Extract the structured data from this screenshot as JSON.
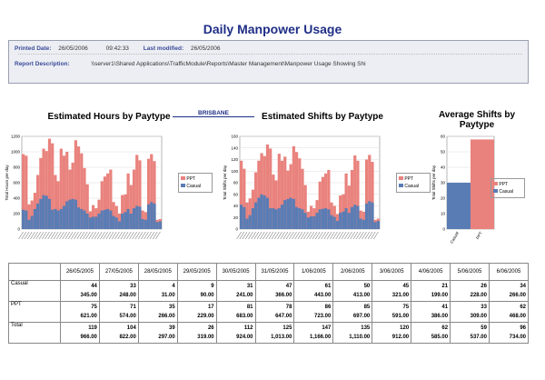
{
  "page": {
    "title": "Daily Manpower Usage",
    "printed_date_label": "Printed Date:",
    "printed_date": "26/05/2006",
    "printed_time": "09:42:33",
    "last_modified_label": "Last modified:",
    "last_modified": "26/05/2006",
    "report_description_label": "Report Description:",
    "report_description": "\\\\server1\\Shared Applications\\TrafficModule\\Reports\\Master Management\\Manpower Usage Showing Shi",
    "region": "BRISBANE"
  },
  "chart_data": [
    {
      "type": "bar",
      "title": "Estimated Hours by Paytype",
      "ylabel": "Total Hours per day",
      "ylim": [
        0,
        1200
      ],
      "yticks": [
        0,
        200,
        400,
        600,
        800,
        1000,
        1200
      ],
      "series": [
        {
          "name": "PPT",
          "color": "#e9827d",
          "values": [
            970,
            950,
            320,
            370,
            470,
            700,
            920,
            1040,
            1010,
            1170,
            1110,
            700,
            620,
            1040,
            950,
            1000,
            770,
            860,
            1150,
            1070,
            980,
            790,
            580,
            230,
            310,
            270,
            380,
            620,
            680,
            720,
            770,
            350,
            300,
            200,
            440,
            450,
            720,
            570,
            770,
            960,
            890,
            240,
            220,
            910,
            970,
            880,
            120,
            130
          ]
        },
        {
          "name": "Casual",
          "color": "#5a7cb4",
          "values": [
            250,
            240,
            120,
            170,
            260,
            330,
            390,
            440,
            430,
            390,
            250,
            260,
            240,
            260,
            300,
            360,
            380,
            390,
            380,
            280,
            260,
            240,
            200,
            150,
            160,
            160,
            200,
            240,
            250,
            260,
            240,
            170,
            150,
            100,
            200,
            220,
            260,
            200,
            270,
            300,
            290,
            130,
            120,
            320,
            350,
            330,
            90,
            100
          ]
        }
      ],
      "legend": "right"
    },
    {
      "type": "bar",
      "title": "Estimated Shifts by Paytype",
      "ylabel": "Total Shifts per day",
      "ylim": [
        0,
        160
      ],
      "yticks": [
        0,
        20,
        40,
        60,
        80,
        100,
        120,
        140,
        160
      ],
      "series": [
        {
          "name": "PPT",
          "color": "#e9827d",
          "values": [
            118,
            104,
            46,
            53,
            68,
            98,
            118,
            131,
            126,
            146,
            139,
            94,
            84,
            130,
            118,
            125,
            101,
            112,
            143,
            133,
            122,
            104,
            76,
            30,
            40,
            36,
            50,
            82,
            90,
            96,
            102,
            46,
            40,
            26,
            58,
            60,
            96,
            75,
            102,
            127,
            118,
            32,
            30,
            120,
            128,
            116,
            16,
            18
          ]
        },
        {
          "name": "Casual",
          "color": "#5a7cb4",
          "values": [
            42,
            38,
            18,
            24,
            36,
            46,
            54,
            60,
            58,
            54,
            36,
            36,
            34,
            36,
            42,
            50,
            52,
            54,
            52,
            38,
            36,
            34,
            28,
            20,
            22,
            22,
            28,
            34,
            35,
            36,
            34,
            24,
            21,
            14,
            28,
            30,
            36,
            28,
            38,
            42,
            40,
            18,
            16,
            44,
            48,
            46,
            12,
            14
          ]
        }
      ],
      "legend": "right"
    },
    {
      "type": "bar",
      "title": "Average Shifts by Paytype",
      "ylabel": "Total Shifts per day",
      "ylim": [
        0,
        60
      ],
      "yticks": [
        0,
        10,
        20,
        30,
        40,
        50,
        60
      ],
      "categories": [
        "Casual",
        "PPT"
      ],
      "values": [
        30,
        58
      ],
      "colors": [
        "#5a7cb4",
        "#e9827d"
      ],
      "legend_entries": [
        "PPT",
        "Casual"
      ],
      "legend": "right"
    }
  ],
  "table": {
    "dates": [
      "26/05/2005",
      "27/05/2005",
      "28/05/2005",
      "29/05/2005",
      "30/05/2005",
      "31/05/2005",
      "1/06/2005",
      "2/06/2005",
      "3/06/2005",
      "4/06/2005",
      "5/06/2005",
      "6/06/2005"
    ],
    "rows": [
      {
        "label": "Casual",
        "v1": [
          "44",
          "33",
          "4",
          "9",
          "31",
          "47",
          "61",
          "50",
          "45",
          "21",
          "26",
          "34"
        ],
        "v2": [
          "345.00",
          "248.00",
          "31.00",
          "90.00",
          "241.00",
          "366.00",
          "443.00",
          "413.00",
          "321.00",
          "199.00",
          "228.00",
          "266.00"
        ]
      },
      {
        "label": "PPT",
        "v1": [
          "75",
          "71",
          "35",
          "17",
          "81",
          "78",
          "86",
          "85",
          "75",
          "41",
          "33",
          "62"
        ],
        "v2": [
          "621.00",
          "574.00",
          "266.00",
          "229.00",
          "683.00",
          "647.00",
          "723.00",
          "697.00",
          "591.00",
          "386.00",
          "309.00",
          "468.00"
        ]
      },
      {
        "label": "Total",
        "v1": [
          "119",
          "104",
          "39",
          "26",
          "112",
          "125",
          "147",
          "135",
          "120",
          "62",
          "59",
          "96"
        ],
        "v2": [
          "966.00",
          "822.00",
          "297.00",
          "319.00",
          "924.00",
          "1,013.00",
          "1,166.00",
          "1,110.00",
          "912.00",
          "585.00",
          "537.00",
          "734.00"
        ]
      }
    ]
  }
}
